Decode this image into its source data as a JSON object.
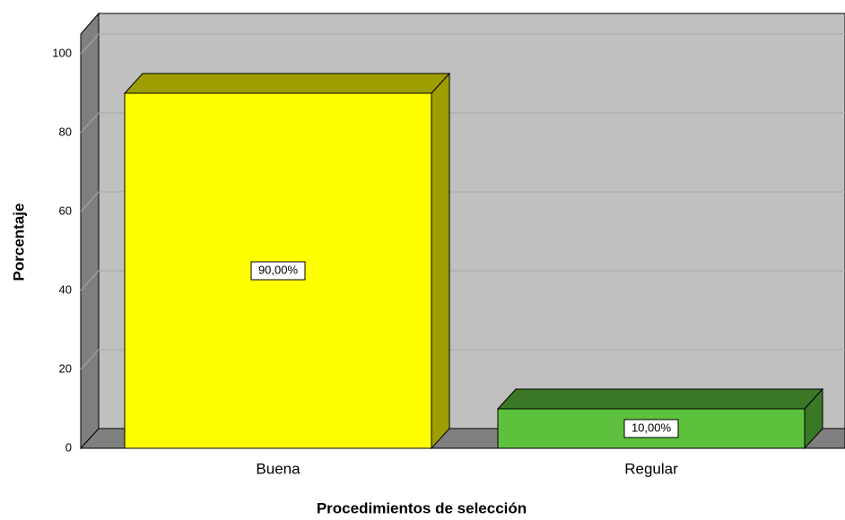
{
  "chart_data": {
    "type": "bar3d",
    "x_label": "Procedimientos de selección",
    "y_label": "Porcentaje",
    "categories": [
      "Buena",
      "Regular"
    ],
    "values": [
      90,
      10
    ],
    "value_labels": [
      "90,00%",
      "10,00%"
    ],
    "colors": [
      "#ffff00",
      "#5ec13e"
    ],
    "ylim": [
      0,
      105
    ],
    "yticks": [
      0,
      20,
      40,
      60,
      80,
      100
    ],
    "grid": true
  }
}
